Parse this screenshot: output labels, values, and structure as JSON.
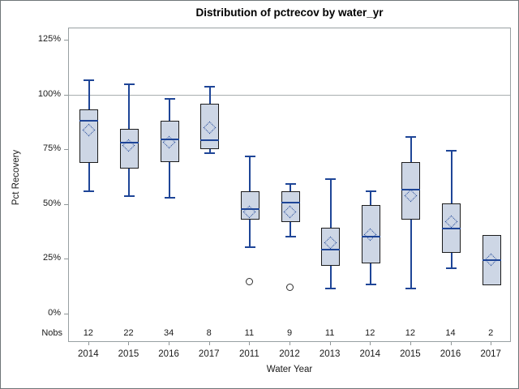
{
  "colors": {
    "accent_blue": "#1e4597",
    "box_fill": "#cdd6e5",
    "box_border": "#1c1c1c",
    "outlier_stroke": "#2e2e2e",
    "grid_gray": "#a8aeb0",
    "frame_gray": "#98a0a2",
    "text": "#1a1a1a"
  },
  "chart_data": {
    "type": "boxplot",
    "title": "Distribution of pctrecov by water_yr",
    "xlabel": "Water Year",
    "ylabel": "Pct Recovery",
    "nobs_row_label": "Nobs",
    "ylim": [
      0,
      125
    ],
    "y_ticks": [
      {
        "label": "0%",
        "value": 0
      },
      {
        "label": "25%",
        "value": 25
      },
      {
        "label": "50%",
        "value": 50
      },
      {
        "label": "75%",
        "value": 75
      },
      {
        "label": "100%",
        "value": 100
      },
      {
        "label": "125%",
        "value": 125
      }
    ],
    "reference_line_value": 100,
    "grid": "single horizontal reference line at 100%",
    "legend_position": "none",
    "series": [
      {
        "category": "2014",
        "nobs": 12,
        "whisker_low": 56,
        "q1": 69,
        "median": 88.5,
        "q3": 93.5,
        "whisker_high": 107,
        "mean": 84,
        "outliers": []
      },
      {
        "category": "2015",
        "nobs": 22,
        "whisker_low": 54,
        "q1": 66.5,
        "median": 78.5,
        "q3": 84.5,
        "whisker_high": 105,
        "mean": 77,
        "outliers": []
      },
      {
        "category": "2016",
        "nobs": 34,
        "whisker_low": 53,
        "q1": 69.5,
        "median": 80,
        "q3": 88.5,
        "whisker_high": 98.5,
        "mean": 78.5,
        "outliers": []
      },
      {
        "category": "2017",
        "nobs": 8,
        "whisker_low": 73.5,
        "q1": 75.5,
        "median": 79.5,
        "q3": 96,
        "whisker_high": 104,
        "mean": 85,
        "outliers": []
      },
      {
        "category": "2011",
        "nobs": 11,
        "whisker_low": 30.5,
        "q1": 43,
        "median": 48,
        "q3": 56,
        "whisker_high": 72,
        "mean": 46.5,
        "outliers": [
          14.5
        ]
      },
      {
        "category": "2012",
        "nobs": 9,
        "whisker_low": 35.5,
        "q1": 42,
        "median": 51,
        "q3": 56,
        "whisker_high": 59.5,
        "mean": 46.5,
        "outliers": [
          12
        ]
      },
      {
        "category": "2013",
        "nobs": 11,
        "whisker_low": 11.5,
        "q1": 22,
        "median": 29.5,
        "q3": 39.5,
        "whisker_high": 61.5,
        "mean": 32.5,
        "outliers": []
      },
      {
        "category": "2014",
        "nobs": 12,
        "whisker_low": 13.5,
        "q1": 23,
        "median": 35.5,
        "q3": 50,
        "whisker_high": 56,
        "mean": 36,
        "outliers": []
      },
      {
        "category": "2015",
        "nobs": 12,
        "whisker_low": 11.5,
        "q1": 43,
        "median": 57,
        "q3": 69.5,
        "whisker_high": 81,
        "mean": 54,
        "outliers": []
      },
      {
        "category": "2016",
        "nobs": 14,
        "whisker_low": 21,
        "q1": 28,
        "median": 39,
        "q3": 50.5,
        "whisker_high": 74.5,
        "mean": 42,
        "outliers": []
      },
      {
        "category": "2017",
        "nobs": 2,
        "whisker_low": 13,
        "q1": 13,
        "median": 24.5,
        "q3": 36,
        "whisker_high": 36,
        "mean": 24.5,
        "outliers": []
      }
    ]
  }
}
